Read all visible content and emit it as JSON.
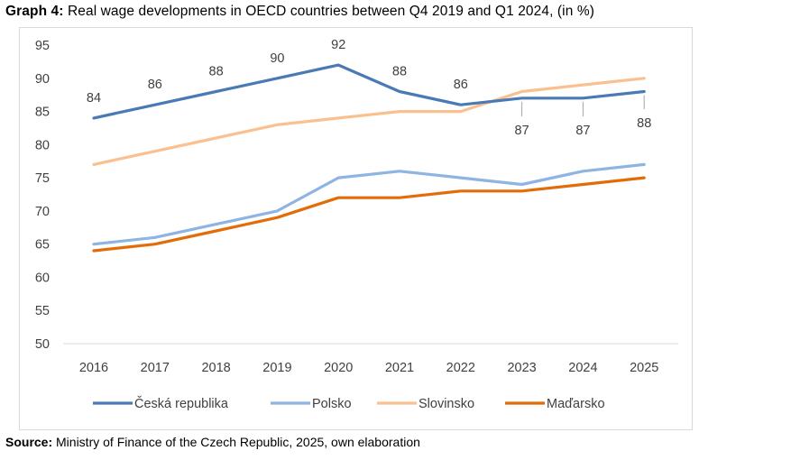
{
  "caption": {
    "label": "Graph 4:",
    "text": " Real wage developments in OECD countries between Q4 2019 and Q1 2024, (in %)"
  },
  "source": {
    "label": "Source:",
    "text": " Ministry of Finance of the Czech Republic, 2025, own elaboration"
  },
  "chart_data": {
    "type": "line",
    "x": [
      "2016",
      "2017",
      "2018",
      "2019",
      "2020",
      "2021",
      "2022",
      "2023",
      "2024",
      "2025"
    ],
    "ylim": [
      50,
      95
    ],
    "yticks": [
      50,
      55,
      60,
      65,
      70,
      75,
      80,
      85,
      90,
      95
    ],
    "grid": false,
    "legend": "bottom",
    "series": [
      {
        "name": "Česká republika",
        "color": "#4a7ab5",
        "values": [
          84,
          86,
          88,
          90,
          92,
          88,
          86,
          87,
          87,
          88
        ],
        "labels": [
          "84",
          "86",
          "88",
          "90",
          "92",
          "88",
          "86",
          "87",
          "87",
          "88"
        ]
      },
      {
        "name": "Polsko",
        "color": "#8eb4e3",
        "values": [
          65,
          66,
          68,
          70,
          75,
          76,
          75,
          74,
          76,
          77
        ]
      },
      {
        "name": "Slovinsko",
        "color": "#fac090",
        "values": [
          77,
          79,
          81,
          83,
          84,
          85,
          85,
          88,
          89,
          90
        ]
      },
      {
        "name": "Maďarsko",
        "color": "#e36c09",
        "values": [
          64,
          65,
          67,
          69,
          72,
          72,
          73,
          73,
          74,
          75
        ]
      }
    ]
  }
}
